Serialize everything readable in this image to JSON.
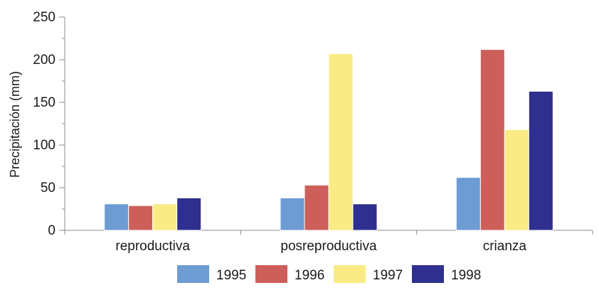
{
  "chart_data": {
    "type": "bar",
    "title": "",
    "xlabel": "",
    "ylabel": "Precipitación (mm)",
    "ylim": [
      0,
      250
    ],
    "yticks": [
      0,
      50,
      100,
      150,
      200,
      250
    ],
    "categories": [
      "reproductiva",
      "posreproductiva",
      "crianza"
    ],
    "series": [
      {
        "name": "1995",
        "color": "#6d9bd3",
        "values": [
          31,
          38,
          62
        ]
      },
      {
        "name": "1996",
        "color": "#cd5f5b",
        "values": [
          29,
          53,
          212
        ]
      },
      {
        "name": "1997",
        "color": "#faeb84",
        "values": [
          31,
          207,
          118
        ]
      },
      {
        "name": "1998",
        "color": "#2e2f8e",
        "values": [
          38,
          31,
          163
        ]
      }
    ],
    "grid": false,
    "legend_position": "bottom"
  }
}
